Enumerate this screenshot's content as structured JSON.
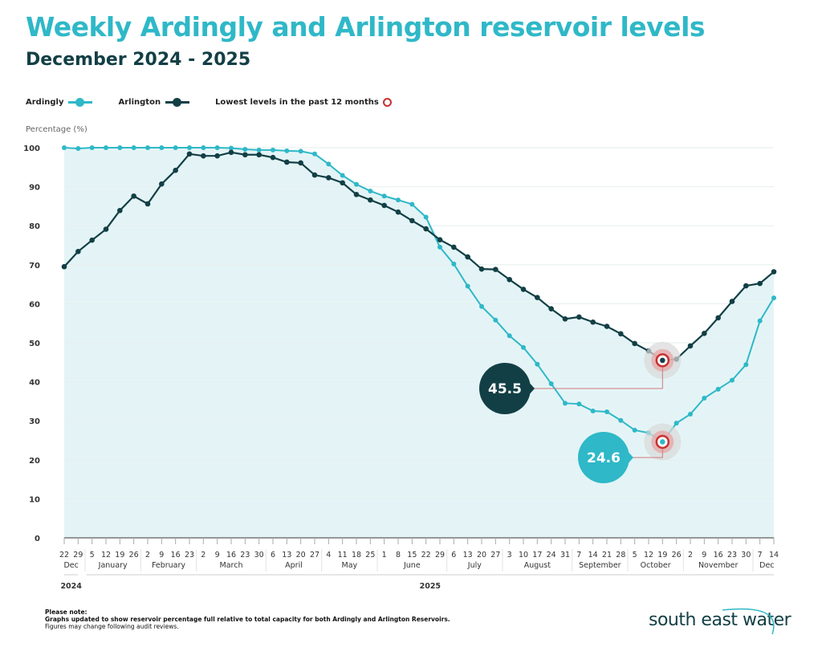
{
  "header": {
    "title": "Weekly Ardingly and Arlington reservoir levels",
    "subtitle": "December 2024 - 2025"
  },
  "legend": {
    "ardingly": "Ardingly",
    "arlington": "Arlington",
    "lowest": "Lowest levels in the past 12 months"
  },
  "footer": {
    "note_heading": "Please note:",
    "note_line1": "Graphs updated to show reservoir percentage full relative to total capacity for both Ardingly and Arlington Reservoirs.",
    "note_line2": "Figures may change following audit reviews.",
    "logo": "south east water"
  },
  "chart_data": {
    "type": "line",
    "title": "Weekly Ardingly and Arlington reservoir levels",
    "subtitle": "December 2024 - 2025",
    "ylabel": "Percentage (%)",
    "ylim": [
      0,
      100
    ],
    "yticks": [
      0,
      10,
      20,
      30,
      40,
      50,
      60,
      70,
      80,
      90,
      100
    ],
    "grid": true,
    "legend_position": "top-left",
    "x_tick_labels": [
      "22",
      "29",
      "5",
      "12",
      "19",
      "26",
      "2",
      "9",
      "16",
      "23",
      "2",
      "9",
      "16",
      "23",
      "30",
      "6",
      "13",
      "20",
      "27",
      "4",
      "11",
      "18",
      "25",
      "1",
      "8",
      "15",
      "22",
      "29",
      "6",
      "13",
      "20",
      "27",
      "3",
      "10",
      "17",
      "24",
      "31",
      "7",
      "14",
      "21",
      "28",
      "5",
      "12",
      "19",
      "26",
      "2",
      "9",
      "16",
      "23",
      "30",
      "7",
      "14"
    ],
    "months": [
      {
        "label": "Dec",
        "count": 2
      },
      {
        "label": "January",
        "count": 4
      },
      {
        "label": "February",
        "count": 4
      },
      {
        "label": "March",
        "count": 5
      },
      {
        "label": "April",
        "count": 4
      },
      {
        "label": "May",
        "count": 4
      },
      {
        "label": "June",
        "count": 5
      },
      {
        "label": "July",
        "count": 4
      },
      {
        "label": "August",
        "count": 5
      },
      {
        "label": "September",
        "count": 4
      },
      {
        "label": "October",
        "count": 4
      },
      {
        "label": "November",
        "count": 5
      },
      {
        "label": "Dec",
        "count": 2
      }
    ],
    "years": [
      {
        "label": "2024",
        "count": 2
      },
      {
        "label": "2025",
        "count": 50
      }
    ],
    "series": [
      {
        "name": "Ardingly",
        "color": "#2fb8c8",
        "values": [
          100,
          99.8,
          100,
          100,
          100,
          100,
          100,
          100,
          100,
          100,
          100,
          100,
          99.9,
          99.6,
          99.4,
          99.4,
          99.2,
          99.1,
          98.4,
          95.8,
          92.9,
          90.6,
          88.9,
          87.6,
          86.6,
          85.5,
          82.2,
          74.5,
          70.2,
          64.5,
          59.3,
          55.8,
          51.8,
          48.8,
          44.5,
          39.5,
          34.5,
          34.3,
          32.5,
          32.3,
          30.1,
          27.6,
          26.9,
          24.6,
          29.4,
          31.7,
          35.8,
          38.1,
          40.4,
          44.4,
          55.6,
          61.5
        ]
      },
      {
        "name": "Arlington",
        "color": "#123f45",
        "values": [
          69.5,
          73.4,
          76.3,
          79.1,
          83.9,
          87.6,
          85.6,
          90.7,
          94.2,
          98.4,
          97.9,
          97.9,
          98.8,
          98.2,
          98.2,
          97.5,
          96.3,
          96.1,
          93.0,
          92.3,
          91.0,
          88.0,
          86.6,
          85.2,
          83.5,
          81.3,
          79.2,
          76.4,
          74.5,
          72.0,
          68.9,
          68.8,
          66.2,
          63.7,
          61.6,
          58.7,
          56.1,
          56.6,
          55.3,
          54.2,
          52.3,
          49.8,
          47.9,
          45.5,
          45.8,
          49.2,
          52.4,
          56.4,
          60.6,
          64.6,
          65.2,
          68.2
        ]
      }
    ],
    "annotations": [
      {
        "series": "Arlington",
        "week": "19 October",
        "value": 45.5,
        "label": "45.5",
        "color": "#123f45"
      },
      {
        "series": "Ardingly",
        "week": "19 October",
        "value": 24.6,
        "label": "24.6",
        "color": "#2fb8c8"
      }
    ],
    "lowest_marker_color": "#c8302f",
    "fill_color": "#e4f4f6"
  }
}
